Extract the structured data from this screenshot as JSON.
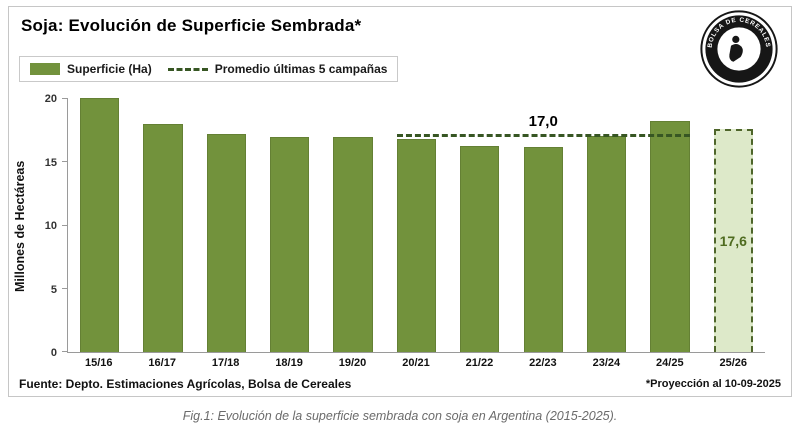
{
  "header": {
    "title": "Soja: Evolución de Superficie Sembrada*",
    "logo_text": "BOLSA DE CEREALES"
  },
  "legend": {
    "series_label": "Superficie (Ha)",
    "avg_label": "Promedio últimas 5 campañas"
  },
  "footer": {
    "source": "Fuente: Depto. Estimaciones Agrícolas, Bolsa de Cereales",
    "projection_note": "*Proyección al 10-09-2025"
  },
  "caption": "Fig.1: Evolución de la superficie sembrada con soja en Argentina (2015-2025).",
  "colors": {
    "bar": "#72923c",
    "bar_projected_fill": "#dde9c9",
    "bar_projected_border": "#4e652a",
    "avg_line": "#375623"
  },
  "chart_data": {
    "type": "bar",
    "title": "Soja: Evolución de Superficie Sembrada*",
    "xlabel": "",
    "ylabel": "Millones de Hectáreas",
    "ylim": [
      0,
      20
    ],
    "yticks": [
      0,
      5,
      10,
      15,
      20
    ],
    "categories": [
      "15/16",
      "16/17",
      "17/18",
      "18/19",
      "19/20",
      "20/21",
      "21/22",
      "22/23",
      "23/24",
      "24/25",
      "25/26"
    ],
    "values": [
      20.1,
      18.0,
      17.2,
      17.0,
      17.0,
      16.8,
      16.3,
      16.2,
      17.1,
      18.3,
      17.6
    ],
    "projected_index": 10,
    "projected_label": "17,6",
    "average_line": {
      "value": 17.0,
      "label": "17,0",
      "start_index": 5,
      "end_index": 9
    },
    "legend": [
      "Superficie (Ha)",
      "Promedio últimas 5 campañas"
    ],
    "grid": false,
    "legend_position": "top-left"
  }
}
